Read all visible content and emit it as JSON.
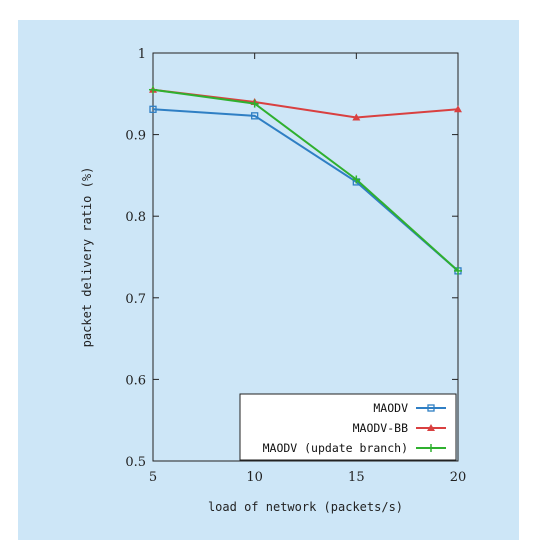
{
  "chart_data": {
    "type": "line",
    "title": "",
    "xlabel": "load of network (packets/s)",
    "ylabel": "packet delivery ratio (%)",
    "x": [
      5,
      10,
      15,
      20
    ],
    "xlim": [
      5,
      20
    ],
    "ylim": [
      0.5,
      1.0
    ],
    "xticks": [
      "5",
      "10",
      "15",
      "20"
    ],
    "yticks": [
      "0.5",
      "0.6",
      "0.7",
      "0.8",
      "0.9",
      "1"
    ],
    "grid": false,
    "legend_position": "bottom-right",
    "series": [
      {
        "name": "MAODV",
        "color": "#2f7fc4",
        "marker": "square",
        "values": [
          0.931,
          0.923,
          0.842,
          0.733
        ]
      },
      {
        "name": "MAODV-BB",
        "color": "#d94040",
        "marker": "triangle",
        "values": [
          0.955,
          0.94,
          0.921,
          0.931
        ]
      },
      {
        "name": "MAODV (update branch)",
        "color": "#2fb02f",
        "marker": "plus",
        "values": [
          0.955,
          0.938,
          0.845,
          0.733
        ]
      }
    ]
  }
}
